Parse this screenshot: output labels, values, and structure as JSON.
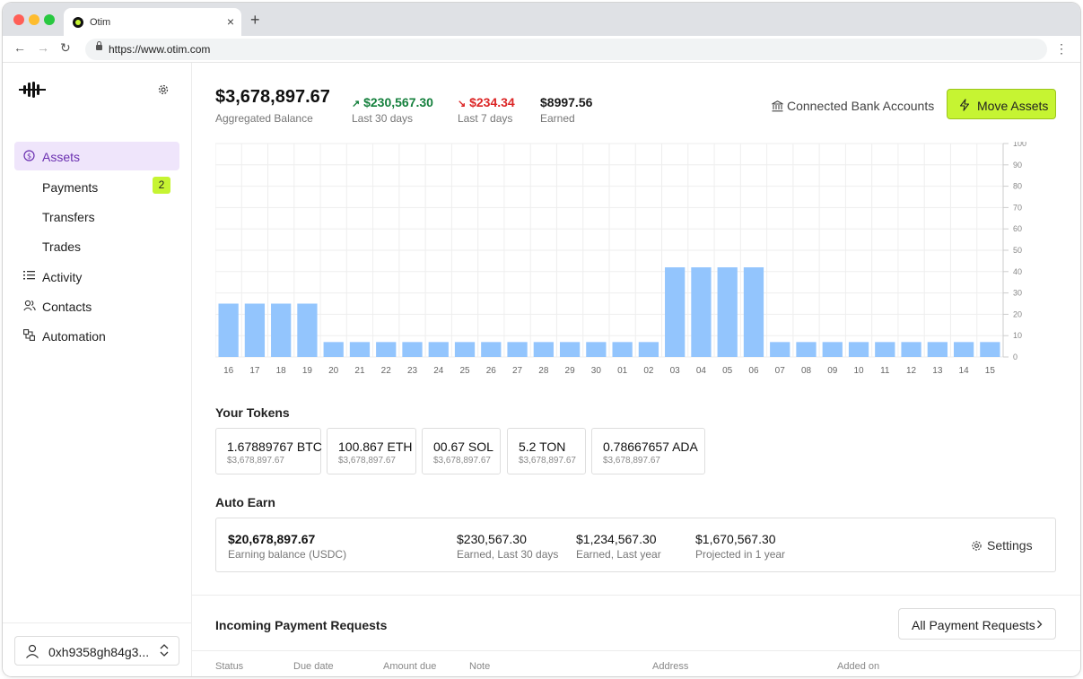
{
  "browser": {
    "tab_title": "Otim",
    "url": "https://www.otim.com",
    "close_glyph": "×",
    "new_tab_glyph": "+",
    "back_glyph": "←",
    "forward_glyph": "→",
    "reload_glyph": "↻",
    "menu_glyph": "⋮"
  },
  "sidebar": {
    "items": [
      {
        "label": "Assets",
        "icon": "dollar-circle-icon",
        "active": true
      },
      {
        "label": "Payments",
        "badge": "2"
      },
      {
        "label": "Transfers"
      },
      {
        "label": "Trades"
      },
      {
        "label": "Activity",
        "icon": "list-icon"
      },
      {
        "label": "Contacts",
        "icon": "users-icon"
      },
      {
        "label": "Automation",
        "icon": "automation-icon"
      }
    ],
    "wallet": "0xh9358gh84g3..."
  },
  "header": {
    "balance": "$3,678,897.67",
    "balance_label": "Aggregated Balance",
    "stat1": {
      "value": "$230,567.30",
      "label": "Last 30 days",
      "arrow": "↗"
    },
    "stat2": {
      "value": "$234.34",
      "label": "Last 7 days",
      "arrow": "↘"
    },
    "stat3": {
      "value": "$8997.56",
      "label": "Earned"
    },
    "bank_link": "Connected Bank Accounts",
    "move_button": "Move Assets"
  },
  "colors": {
    "accent": "#c6f432",
    "active_nav_bg": "#efe5fb",
    "active_nav_text": "#6a2fb0",
    "bar": "#93c5fd",
    "positive": "#15803d",
    "negative": "#dc2626"
  },
  "chart_data": {
    "type": "bar",
    "categories": [
      "16",
      "17",
      "18",
      "19",
      "20",
      "21",
      "22",
      "23",
      "24",
      "25",
      "26",
      "27",
      "28",
      "29",
      "30",
      "01",
      "02",
      "03",
      "04",
      "05",
      "06",
      "07",
      "08",
      "09",
      "10",
      "11",
      "12",
      "13",
      "14",
      "15"
    ],
    "values": [
      25,
      25,
      25,
      25,
      7,
      7,
      7,
      7,
      7,
      7,
      7,
      7,
      7,
      7,
      7,
      7,
      7,
      42,
      42,
      42,
      42,
      7,
      7,
      7,
      7,
      7,
      7,
      7,
      7,
      7
    ],
    "ylim": [
      0,
      100
    ],
    "yticks": [
      "100",
      "90",
      "80",
      "70",
      "60",
      "50",
      "40",
      "30",
      "20",
      "10",
      "0"
    ],
    "grid": true,
    "title": "",
    "xlabel": "",
    "ylabel": ""
  },
  "tokens": {
    "title": "Your Tokens",
    "items": [
      {
        "amount": "1.67889767 BTC",
        "usd": "$3,678,897.67"
      },
      {
        "amount": "100.867 ETH",
        "usd": "$3,678,897.67"
      },
      {
        "amount": "00.67 SOL",
        "usd": "$3,678,897.67"
      },
      {
        "amount": "5.2 TON",
        "usd": "$3,678,897.67"
      },
      {
        "amount": "0.78667657 ADA",
        "usd": "$3,678,897.67"
      }
    ]
  },
  "auto_earn": {
    "title": "Auto Earn",
    "balance": "$20,678,897.67",
    "balance_label": "Earning balance (USDC)",
    "earned_30": "$230,567.30",
    "earned_30_label": "Earned, Last 30 days",
    "earned_year": "$1,234,567.30",
    "earned_year_label": "Earned, Last year",
    "projected": "$1,670,567.30",
    "projected_label": "Projected in 1 year",
    "settings": "Settings"
  },
  "requests": {
    "title": "Incoming Payment Requests",
    "all_button": "All Payment Requests",
    "columns": [
      "Status",
      "Due date",
      "Amount due",
      "Note",
      "Address",
      "Added on"
    ]
  }
}
